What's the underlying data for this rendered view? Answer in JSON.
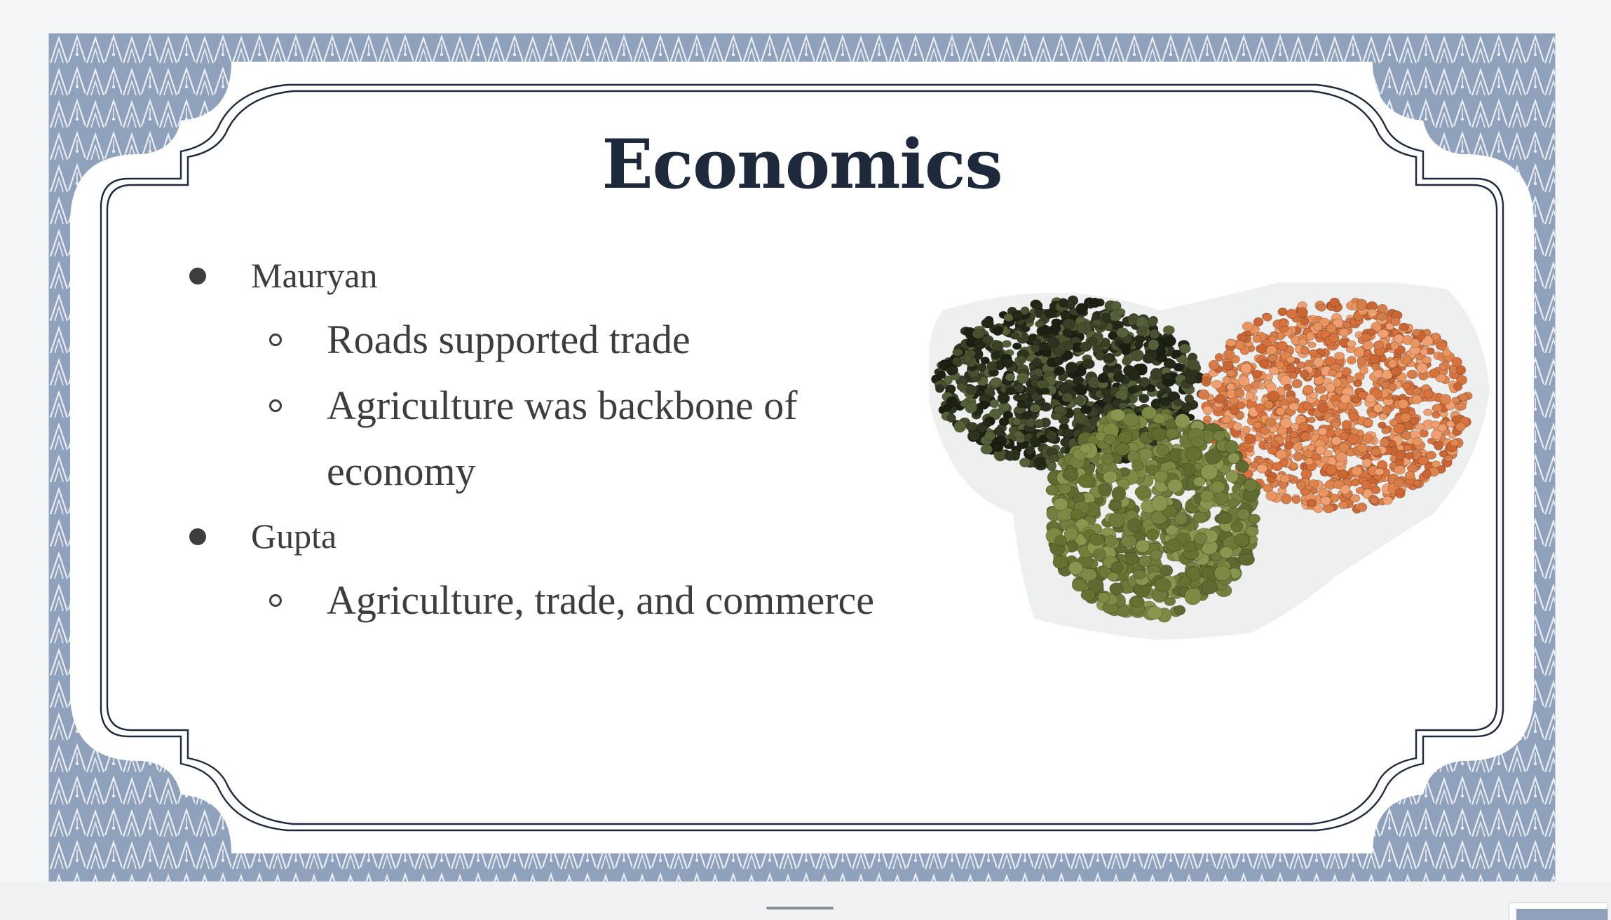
{
  "slide": {
    "title": "Economics",
    "bullets": [
      {
        "label": "Mauryan",
        "subitems": [
          "Roads supported trade",
          "Agriculture was backbone of economy"
        ]
      },
      {
        "label": "Gupta",
        "subitems": [
          "Agriculture, trade, and commerce"
        ]
      }
    ],
    "image": {
      "description_icon": "lentils-image"
    }
  },
  "colors": {
    "border_pattern": "#8fa1bb",
    "title": "#1e2a3b",
    "body_text": "#3d3d3d",
    "frame_line": "#1e2a3b"
  }
}
